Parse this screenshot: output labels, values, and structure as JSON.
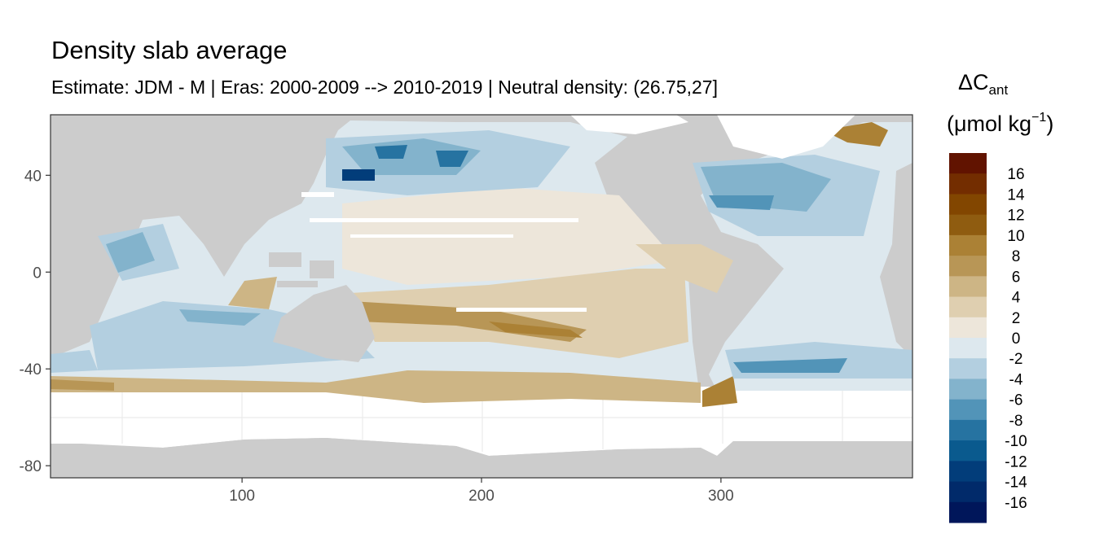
{
  "chart_data": {
    "type": "heatmap",
    "title": "Density slab average",
    "subtitle": "Estimate: JDM - M | Eras: 2000-2009 --> 2010-2019 | Neutral density: (26.75,27]",
    "xlabel": "",
    "ylabel": "",
    "xlim": [
      20,
      380
    ],
    "ylim": [
      -85,
      65
    ],
    "x_ticks": [
      "100",
      "200",
      "300"
    ],
    "x_tick_values": [
      100,
      200,
      300
    ],
    "y_ticks": [
      "40",
      "0",
      "-40",
      "-80"
    ],
    "y_tick_values": [
      40,
      0,
      -40,
      -80
    ],
    "grid": true,
    "land_color": "#cccccc",
    "legend": {
      "placement": "right",
      "title_main": "ΔC",
      "title_sub": "ant",
      "unit_open": "(μmol kg",
      "unit_sup": "−1",
      "unit_close": ")",
      "breaks": [
        "16",
        "14",
        "12",
        "10",
        "8",
        "6",
        "4",
        "2",
        "0",
        "-2",
        "-4",
        "-6",
        "-8",
        "-10",
        "-12",
        "-14",
        "-16"
      ],
      "colors": [
        "#611300",
        "#732d00",
        "#824600",
        "#8f5c10",
        "#ab8135",
        "#b89656",
        "#cdb585",
        "#dfcfb0",
        "#ede6da",
        "#dde8ee",
        "#b3cfe0",
        "#83b3cc",
        "#5294b8",
        "#2673a1",
        "#0a5a8e",
        "#023d7a",
        "#012a6a",
        "#00165a"
      ]
    }
  }
}
